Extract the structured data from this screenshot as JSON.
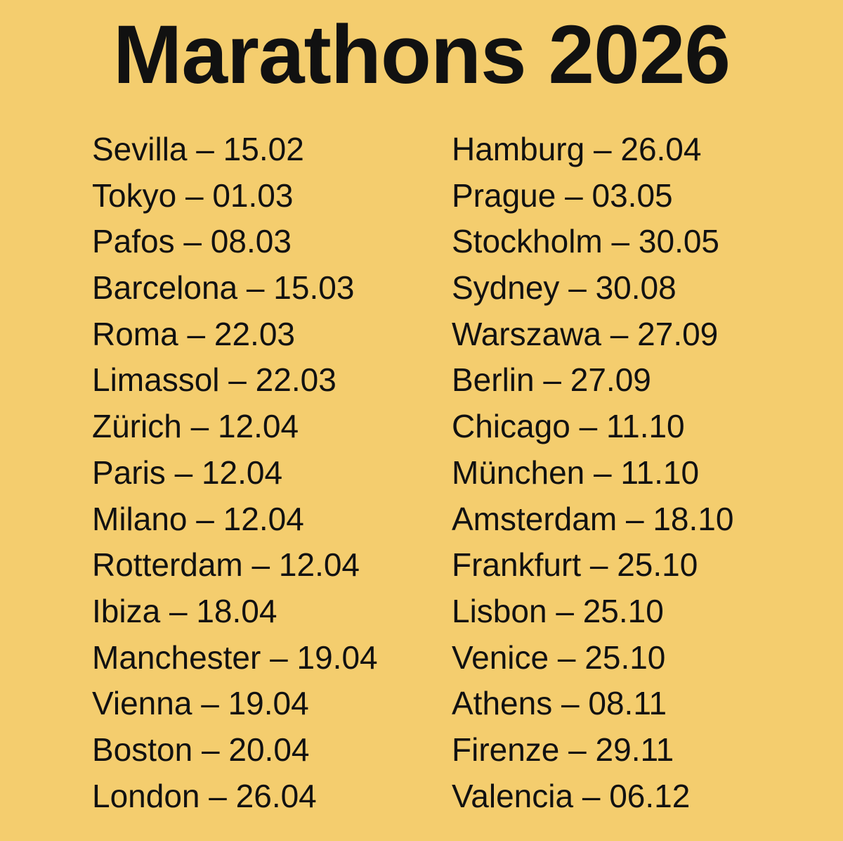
{
  "title": "Marathons 2026",
  "separator": "–",
  "colors": {
    "background": "#f4cd6e",
    "text": "#111111"
  },
  "columns": [
    [
      {
        "city": "Sevilla",
        "date": "15.02"
      },
      {
        "city": "Tokyo",
        "date": "01.03"
      },
      {
        "city": "Pafos",
        "date": "08.03"
      },
      {
        "city": "Barcelona",
        "date": "15.03"
      },
      {
        "city": "Roma",
        "date": "22.03"
      },
      {
        "city": "Limassol",
        "date": "22.03"
      },
      {
        "city": "Zürich",
        "date": "12.04"
      },
      {
        "city": "Paris",
        "date": "12.04"
      },
      {
        "city": "Milano",
        "date": "12.04"
      },
      {
        "city": "Rotterdam",
        "date": "12.04"
      },
      {
        "city": "Ibiza",
        "date": "18.04"
      },
      {
        "city": "Manchester",
        "date": "19.04"
      },
      {
        "city": "Vienna",
        "date": "19.04"
      },
      {
        "city": "Boston",
        "date": "20.04"
      },
      {
        "city": "London",
        "date": "26.04"
      }
    ],
    [
      {
        "city": "Hamburg",
        "date": "26.04"
      },
      {
        "city": "Prague",
        "date": "03.05"
      },
      {
        "city": "Stockholm",
        "date": "30.05"
      },
      {
        "city": "Sydney",
        "date": "30.08"
      },
      {
        "city": "Warszawa",
        "date": "27.09"
      },
      {
        "city": "Berlin",
        "date": "27.09"
      },
      {
        "city": "Chicago",
        "date": "11.10"
      },
      {
        "city": "München",
        "date": "11.10"
      },
      {
        "city": "Amsterdam",
        "date": "18.10"
      },
      {
        "city": "Frankfurt",
        "date": "25.10"
      },
      {
        "city": "Lisbon",
        "date": "25.10"
      },
      {
        "city": "Venice",
        "date": "25.10"
      },
      {
        "city": "Athens",
        "date": "08.11"
      },
      {
        "city": "Firenze",
        "date": "29.11"
      },
      {
        "city": "Valencia",
        "date": "06.12"
      }
    ]
  ]
}
